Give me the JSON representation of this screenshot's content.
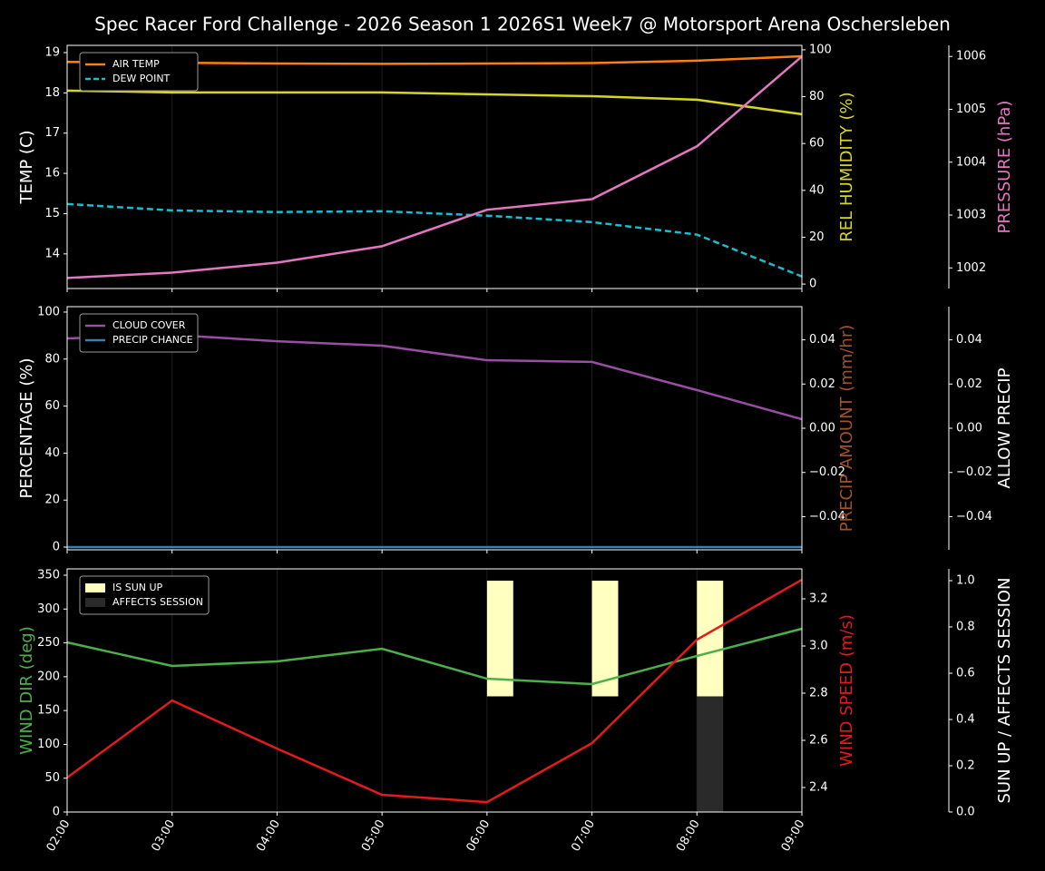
{
  "chart_data": [
    {
      "type": "line",
      "title": "Spec Racer Ford Challenge - 2026 Season 1 2026S1 Week7 @ Motorsport Arena Oschersleben",
      "ylabel": "TEMP (C)",
      "y2label": "REL HUMIDITY (%)",
      "y3label": "PRESSURE (hPa)",
      "ylim": [
        13.14,
        19.18
      ],
      "yticks": [
        14,
        15,
        16,
        17,
        18,
        19
      ],
      "y2lim": [
        -1.9,
        101.9
      ],
      "y2ticks": [
        0,
        20,
        40,
        60,
        80,
        100
      ],
      "y3lim": [
        1001.61,
        1006.21
      ],
      "y3ticks": [
        1002,
        1003,
        1004,
        1005,
        1006
      ],
      "y2color": "#d6d620",
      "y3color": "#e377c2",
      "grid": true,
      "legend": "upper-left",
      "series": [
        {
          "name": "AIR TEMP",
          "color": "#ff7f0e",
          "axis": "y",
          "values": [
            18.77,
            18.75,
            18.73,
            18.72,
            18.73,
            18.74,
            18.8,
            18.91
          ]
        },
        {
          "name": "DEW POINT",
          "color": "#17becf",
          "axis": "y",
          "dash": true,
          "values": [
            15.24,
            15.08,
            15.04,
            15.06,
            14.95,
            14.79,
            14.48,
            13.44
          ]
        },
        {
          "color": "#d6d620",
          "axis": "y2",
          "values": [
            82.6,
            81.8,
            81.8,
            81.8,
            81.0,
            80.2,
            78.7,
            72.5
          ]
        },
        {
          "color": "#e377c2",
          "axis": "y3",
          "values": [
            1001.81,
            1001.91,
            1002.1,
            1002.41,
            1003.1,
            1003.3,
            1004.3,
            1006.0
          ]
        }
      ]
    },
    {
      "type": "line",
      "ylabel": "PERCENTAGE (%)",
      "y2label": "PRECIP AMOUNT (mm/hr)",
      "y3label": "ALLOW PRECIP",
      "ylim": [
        -1.16,
        102.3
      ],
      "yticks": [
        0,
        20,
        40,
        60,
        80,
        100
      ],
      "y2lim": [
        -0.055,
        0.055
      ],
      "y2ticks": [
        {
          "value": -0.04,
          "label": "−0.04"
        },
        {
          "value": -0.02,
          "label": "−0.02"
        },
        {
          "value": 0,
          "label": "0.00"
        },
        0.02,
        0.04
      ],
      "y3lim": [
        -0.055,
        0.055
      ],
      "y3ticks": [
        {
          "value": -0.04,
          "label": "−0.04"
        },
        {
          "value": -0.02,
          "label": "−0.02"
        },
        {
          "value": 0,
          "label": "0.00"
        },
        0.02,
        0.04
      ],
      "y2color": "#a0522d",
      "y3color": "#ffffff",
      "grid": true,
      "legend": "upper-left",
      "series": [
        {
          "name": "CLOUD COVER",
          "color": "#984ea3",
          "axis": "y",
          "values": [
            88.8,
            90.3,
            87.6,
            85.7,
            79.5,
            78.8,
            66.8,
            54.4
          ]
        },
        {
          "name": "PRECIP CHANCE",
          "color": "#377eb8",
          "axis": "y",
          "values": [
            0,
            0,
            0,
            0,
            0,
            0,
            0,
            0
          ]
        }
      ]
    },
    {
      "type": "line",
      "categories": [
        "02:00",
        "03:00",
        "04:00",
        "05:00",
        "06:00",
        "07:00",
        "08:00",
        "09:00"
      ],
      "ylabel": "WIND DIR (deg)",
      "y2label": "WIND SPEED (m/s)",
      "y3label": "SUN UP / AFFECTS SESSION",
      "ylim": [
        0,
        359.4
      ],
      "yticks": [
        0,
        50,
        100,
        150,
        200,
        250,
        300,
        350
      ],
      "y2lim": [
        2.296,
        3.327
      ],
      "y2ticks": [
        2.4,
        2.6,
        2.8,
        {
          "value": 3.0,
          "label": "3.0"
        },
        3.2
      ],
      "y3lim": [
        0,
        1.051
      ],
      "y3ticks": [
        {
          "value": 0,
          "label": "0.0"
        },
        0.2,
        0.4,
        0.6,
        0.8,
        {
          "value": 1,
          "label": "1.0"
        }
      ],
      "ycolor": "#4daf4a",
      "y2color": "#e41a1c",
      "y3color": "#ffffff",
      "grid": true,
      "legend": "upper-left",
      "series": [
        {
          "name": "IS SUN UP",
          "type": "bar",
          "color": "#ffffc0",
          "axis": "y3",
          "values": [
            0,
            0,
            0,
            0,
            1,
            1,
            1,
            0
          ]
        },
        {
          "name": "AFFECTS SESSION",
          "type": "bar",
          "color": "#2a2a2a",
          "axis": "y3",
          "values": [
            0,
            0,
            0,
            0,
            0,
            0,
            0.5,
            0
          ]
        },
        {
          "color": "#4daf4a",
          "axis": "y",
          "values": [
            250.8,
            215.9,
            222.6,
            241.4,
            197.1,
            189.1,
            230.7,
            270.9
          ]
        },
        {
          "color": "#e41a1c",
          "axis": "y2",
          "values": [
            2.442,
            2.769,
            2.565,
            2.369,
            2.338,
            2.588,
            3.027,
            3.281
          ]
        }
      ]
    }
  ]
}
